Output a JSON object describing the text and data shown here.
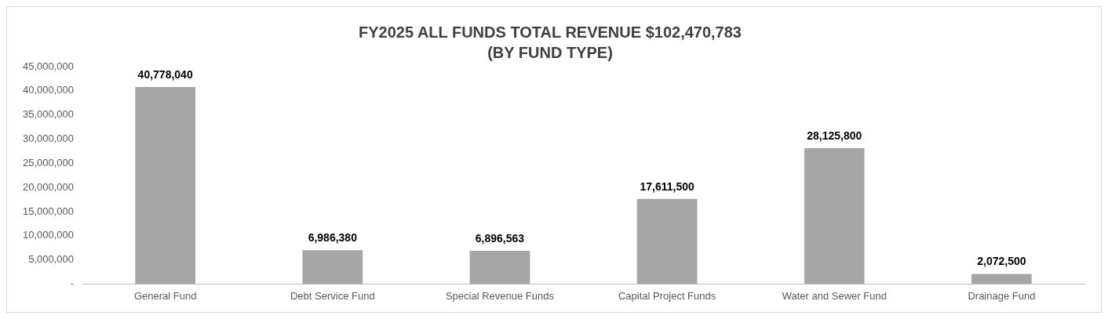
{
  "chart_data": {
    "type": "bar",
    "title": "FY2025 ALL FUNDS TOTAL REVENUE $102,470,783\n(BY FUND TYPE)",
    "categories": [
      "General Fund",
      "Debt Service Fund",
      "Special Revenue Funds",
      "Capital Project Funds",
      "Water and Sewer Fund",
      "Drainage Fund"
    ],
    "values": [
      40778040,
      6986380,
      6896563,
      17611500,
      28125800,
      2072500
    ],
    "color": "#a6a6a6",
    "ylim": [
      0,
      45000000
    ],
    "yticks": [
      {
        "value": 0,
        "label": "-"
      },
      {
        "value": 5000000,
        "label": "5,000,000"
      },
      {
        "value": 10000000,
        "label": "10,000,000"
      },
      {
        "value": 15000000,
        "label": "15,000,000"
      },
      {
        "value": 20000000,
        "label": "20,000,000"
      },
      {
        "value": 25000000,
        "label": "25,000,000"
      },
      {
        "value": 30000000,
        "label": "30,000,000"
      },
      {
        "value": 35000000,
        "label": "35,000,000"
      },
      {
        "value": 40000000,
        "label": "40,000,000"
      },
      {
        "value": 45000000,
        "label": "45,000,000"
      }
    ],
    "value_labels": [
      "40,778,040",
      "6,986,380",
      "6,896,563",
      "17,611,500",
      "28,125,800",
      "2,072,500"
    ],
    "grid": false,
    "legend": false
  }
}
